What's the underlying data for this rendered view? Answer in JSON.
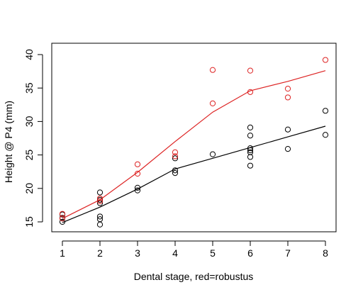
{
  "chart_data": {
    "type": "scatter",
    "title": "",
    "xlabel": "Dental stage, red=robustus",
    "ylabel": "Height @ P4 (mm)",
    "xlim": [
      1,
      8
    ],
    "ylim": [
      15,
      40
    ],
    "xticks": [
      1,
      2,
      3,
      4,
      5,
      6,
      7,
      8
    ],
    "yticks": [
      15,
      20,
      25,
      30,
      35,
      40
    ],
    "grid": false,
    "legend": "none",
    "series": [
      {
        "color": "#000000",
        "points": [
          [
            1,
            15.0
          ],
          [
            1,
            15.6
          ],
          [
            1,
            16.1
          ],
          [
            2,
            14.6
          ],
          [
            2,
            15.4
          ],
          [
            2,
            15.8
          ],
          [
            2,
            17.8
          ],
          [
            2,
            18.3
          ],
          [
            2,
            19.4
          ],
          [
            3,
            19.7
          ],
          [
            3,
            20.1
          ],
          [
            4,
            22.3
          ],
          [
            4,
            22.7
          ],
          [
            4,
            24.5
          ],
          [
            5,
            25.1
          ],
          [
            6,
            23.4
          ],
          [
            6,
            24.7
          ],
          [
            6,
            25.4
          ],
          [
            6,
            25.7
          ],
          [
            6,
            26.0
          ],
          [
            6,
            27.9
          ],
          [
            6,
            29.1
          ],
          [
            7,
            25.9
          ],
          [
            7,
            28.8
          ],
          [
            8,
            28.0
          ],
          [
            8,
            31.6
          ]
        ],
        "line": [
          [
            1,
            14.9
          ],
          [
            2,
            17.2
          ],
          [
            3,
            19.9
          ],
          [
            4,
            22.9
          ],
          [
            5,
            24.5
          ],
          [
            6,
            26.1
          ],
          [
            7,
            27.7
          ],
          [
            8,
            29.3
          ]
        ]
      },
      {
        "color": "#dd2222",
        "points": [
          [
            1,
            15.5
          ],
          [
            1,
            16.2
          ],
          [
            2,
            18.1
          ],
          [
            2,
            18.5
          ],
          [
            3,
            22.2
          ],
          [
            3,
            23.6
          ],
          [
            4,
            24.8
          ],
          [
            4,
            25.4
          ],
          [
            5,
            32.7
          ],
          [
            5,
            37.7
          ],
          [
            6,
            34.4
          ],
          [
            6,
            37.6
          ],
          [
            7,
            33.6
          ],
          [
            7,
            34.9
          ],
          [
            8,
            39.2
          ]
        ],
        "line": [
          [
            1,
            15.5
          ],
          [
            2,
            18.3
          ],
          [
            3,
            22.4
          ],
          [
            4,
            27.0
          ],
          [
            5,
            31.4
          ],
          [
            6,
            34.6
          ],
          [
            7,
            36.0
          ],
          [
            8,
            37.6
          ]
        ]
      }
    ]
  }
}
